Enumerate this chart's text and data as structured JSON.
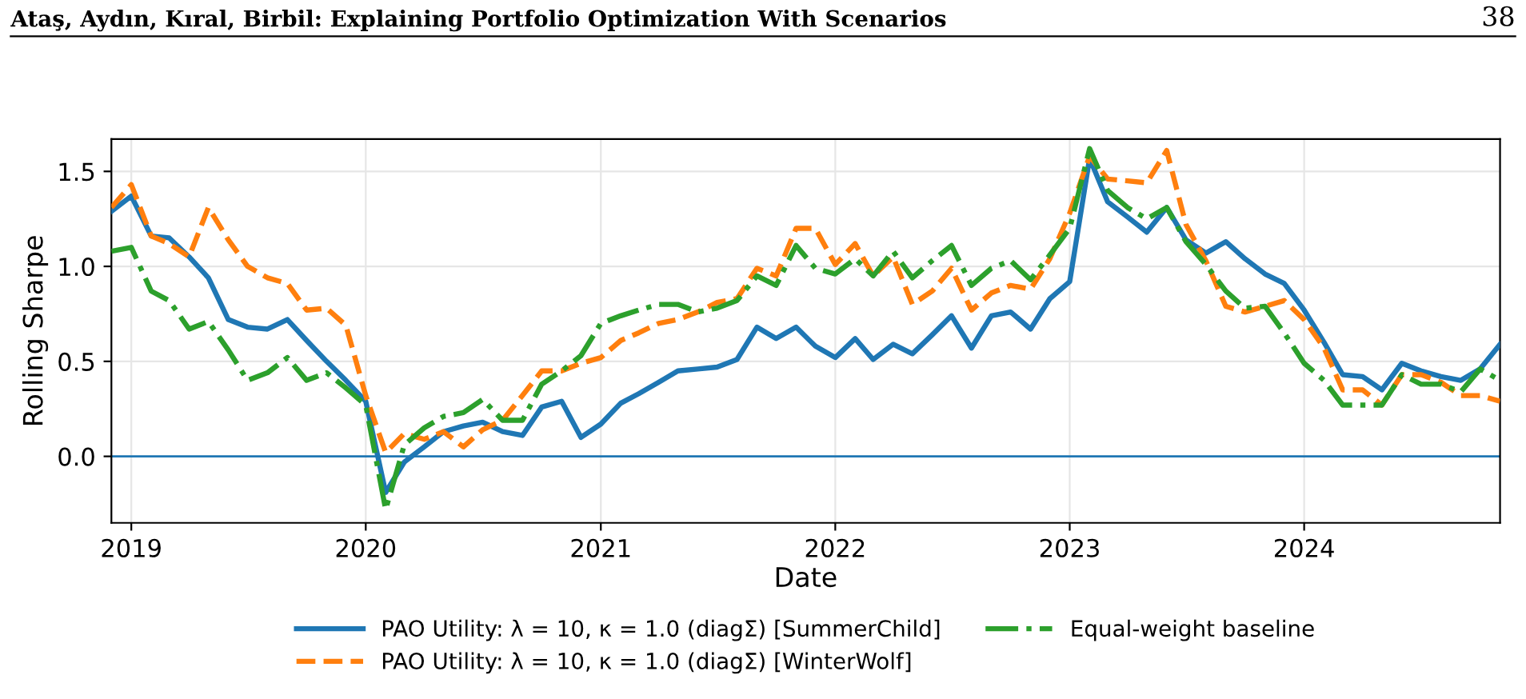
{
  "chart_data": {
    "type": "line",
    "title": "Ataş, Aydın, Kıral, Birbil: Explaining Portfolio Optimization With Scenarios",
    "annotations": [
      "38"
    ],
    "xlabel": "Date",
    "ylabel": "Rolling Sharpe",
    "x": [
      "2018-12",
      "2019-01",
      "2019-02",
      "2019-03",
      "2019-04",
      "2019-05",
      "2019-06",
      "2019-07",
      "2019-08",
      "2019-09",
      "2019-10",
      "2019-11",
      "2019-12",
      "2020-01",
      "2020-02",
      "2020-03",
      "2020-04",
      "2020-05",
      "2020-06",
      "2020-07",
      "2020-08",
      "2020-09",
      "2020-10",
      "2020-11",
      "2020-12",
      "2021-01",
      "2021-02",
      "2021-03",
      "2021-04",
      "2021-05",
      "2021-06",
      "2021-07",
      "2021-08",
      "2021-09",
      "2021-10",
      "2021-11",
      "2021-12",
      "2022-01",
      "2022-02",
      "2022-03",
      "2022-04",
      "2022-05",
      "2022-06",
      "2022-07",
      "2022-08",
      "2022-09",
      "2022-10",
      "2022-11",
      "2022-12",
      "2023-01",
      "2023-02",
      "2023-03",
      "2023-04",
      "2023-05",
      "2023-06",
      "2023-07",
      "2023-08",
      "2023-09",
      "2023-10",
      "2023-11",
      "2023-12",
      "2024-01",
      "2024-02",
      "2024-03",
      "2024-04",
      "2024-05",
      "2024-06",
      "2024-07",
      "2024-08",
      "2024-09",
      "2024-10",
      "2024-11"
    ],
    "series": [
      {
        "name": "PAO Utility: λ = 10, κ = 1.0 (diagΣ) [SummerChild]",
        "color": "#1f77b4",
        "line_style": "solid",
        "values": [
          1.29,
          1.37,
          1.16,
          1.15,
          1.05,
          0.94,
          0.72,
          0.68,
          0.67,
          0.72,
          0.61,
          0.5,
          0.4,
          0.29,
          -0.19,
          -0.03,
          0.05,
          0.13,
          0.16,
          0.18,
          0.13,
          0.11,
          0.26,
          0.29,
          0.1,
          0.17,
          0.28,
          0.33,
          0.39,
          0.45,
          0.46,
          0.47,
          0.51,
          0.68,
          0.62,
          0.68,
          0.58,
          0.52,
          0.62,
          0.51,
          0.59,
          0.54,
          0.64,
          0.74,
          0.57,
          0.74,
          0.76,
          0.67,
          0.83,
          0.92,
          1.57,
          1.34,
          1.26,
          1.18,
          1.31,
          1.14,
          1.07,
          1.13,
          1.04,
          0.96,
          0.91,
          0.77,
          0.6,
          0.43,
          0.42,
          0.35,
          0.49,
          0.45,
          0.42,
          0.4,
          0.46,
          0.59
        ]
      },
      {
        "name": "PAO Utility: λ = 10, κ = 1.0 (diagΣ) [WinterWolf]",
        "color": "#ff7f0e",
        "line_style": "dashed",
        "values": [
          1.31,
          1.43,
          1.16,
          1.12,
          1.05,
          1.31,
          1.14,
          1.0,
          0.94,
          0.91,
          0.77,
          0.78,
          0.69,
          0.32,
          0.02,
          0.12,
          0.09,
          0.13,
          0.05,
          0.14,
          0.19,
          0.32,
          0.45,
          0.45,
          0.49,
          0.52,
          0.61,
          0.65,
          0.7,
          0.72,
          0.76,
          0.81,
          0.83,
          0.99,
          0.95,
          1.2,
          1.2,
          1.01,
          1.12,
          0.95,
          1.05,
          0.8,
          0.87,
          0.99,
          0.77,
          0.86,
          0.9,
          0.88,
          1.04,
          1.28,
          1.58,
          1.46,
          1.45,
          1.44,
          1.61,
          1.22,
          1.03,
          0.79,
          0.76,
          0.79,
          0.82,
          0.72,
          0.57,
          0.35,
          0.35,
          0.27,
          0.43,
          0.43,
          0.39,
          0.32,
          0.32,
          0.29
        ]
      },
      {
        "name": "Equal-weight baseline",
        "color": "#2ca02c",
        "line_style": "dashdot",
        "values": [
          1.08,
          1.1,
          0.87,
          0.82,
          0.67,
          0.71,
          0.56,
          0.4,
          0.44,
          0.52,
          0.4,
          0.44,
          0.36,
          0.27,
          -0.28,
          0.06,
          0.15,
          0.21,
          0.23,
          0.3,
          0.19,
          0.19,
          0.38,
          0.45,
          0.53,
          0.7,
          0.74,
          0.77,
          0.8,
          0.8,
          0.76,
          0.78,
          0.82,
          0.95,
          0.9,
          1.11,
          0.99,
          0.96,
          1.04,
          0.95,
          1.08,
          0.94,
          1.03,
          1.11,
          0.9,
          0.99,
          1.03,
          0.93,
          1.06,
          1.2,
          1.62,
          1.4,
          1.31,
          1.25,
          1.31,
          1.13,
          1.01,
          0.87,
          0.78,
          0.79,
          0.65,
          0.49,
          0.4,
          0.27,
          0.27,
          0.27,
          0.43,
          0.38,
          0.38,
          0.34,
          0.46,
          0.4
        ]
      }
    ],
    "xlim": [
      "2018-12",
      "2024-11"
    ],
    "xticks": [
      "2019",
      "2020",
      "2021",
      "2022",
      "2023",
      "2024"
    ],
    "ylim": [
      -0.35,
      1.67
    ],
    "yticks": [
      {
        "value": 0,
        "label": "0.0"
      },
      0.5,
      {
        "value": 1,
        "label": "1.0"
      },
      1.5
    ],
    "ref_lines": [
      {
        "axis": "y",
        "value": 0,
        "color": "#1f77b4",
        "line_style": "solid"
      }
    ],
    "grid": true,
    "legend": "bottom",
    "marker": "none"
  }
}
